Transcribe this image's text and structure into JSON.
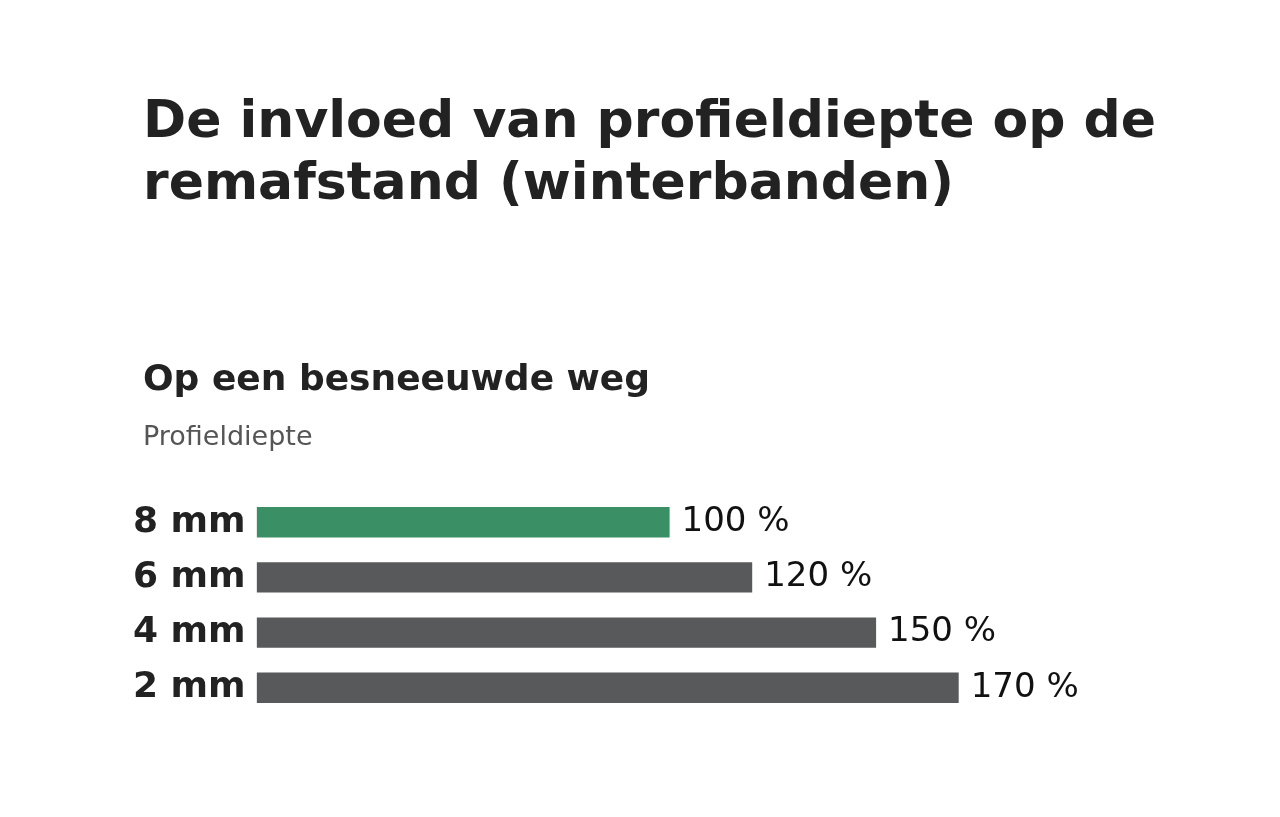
{
  "chart_data": {
    "type": "bar",
    "orientation": "horizontal",
    "title": "De invloed van profieldiepte op de remafstand (winterbanden)",
    "subtitle": "Op een besneeuwde weg",
    "ylabel": "Profieldiepte",
    "categories": [
      "8 mm",
      "6 mm",
      "4 mm",
      "2 mm"
    ],
    "values": [
      100,
      120,
      150,
      170
    ],
    "colors": [
      "#3a9064",
      "#58595b",
      "#58595b",
      "#58595b"
    ],
    "value_labels": [
      "100 %",
      "120 %",
      "150 %",
      "170 %"
    ],
    "legend": false
  }
}
